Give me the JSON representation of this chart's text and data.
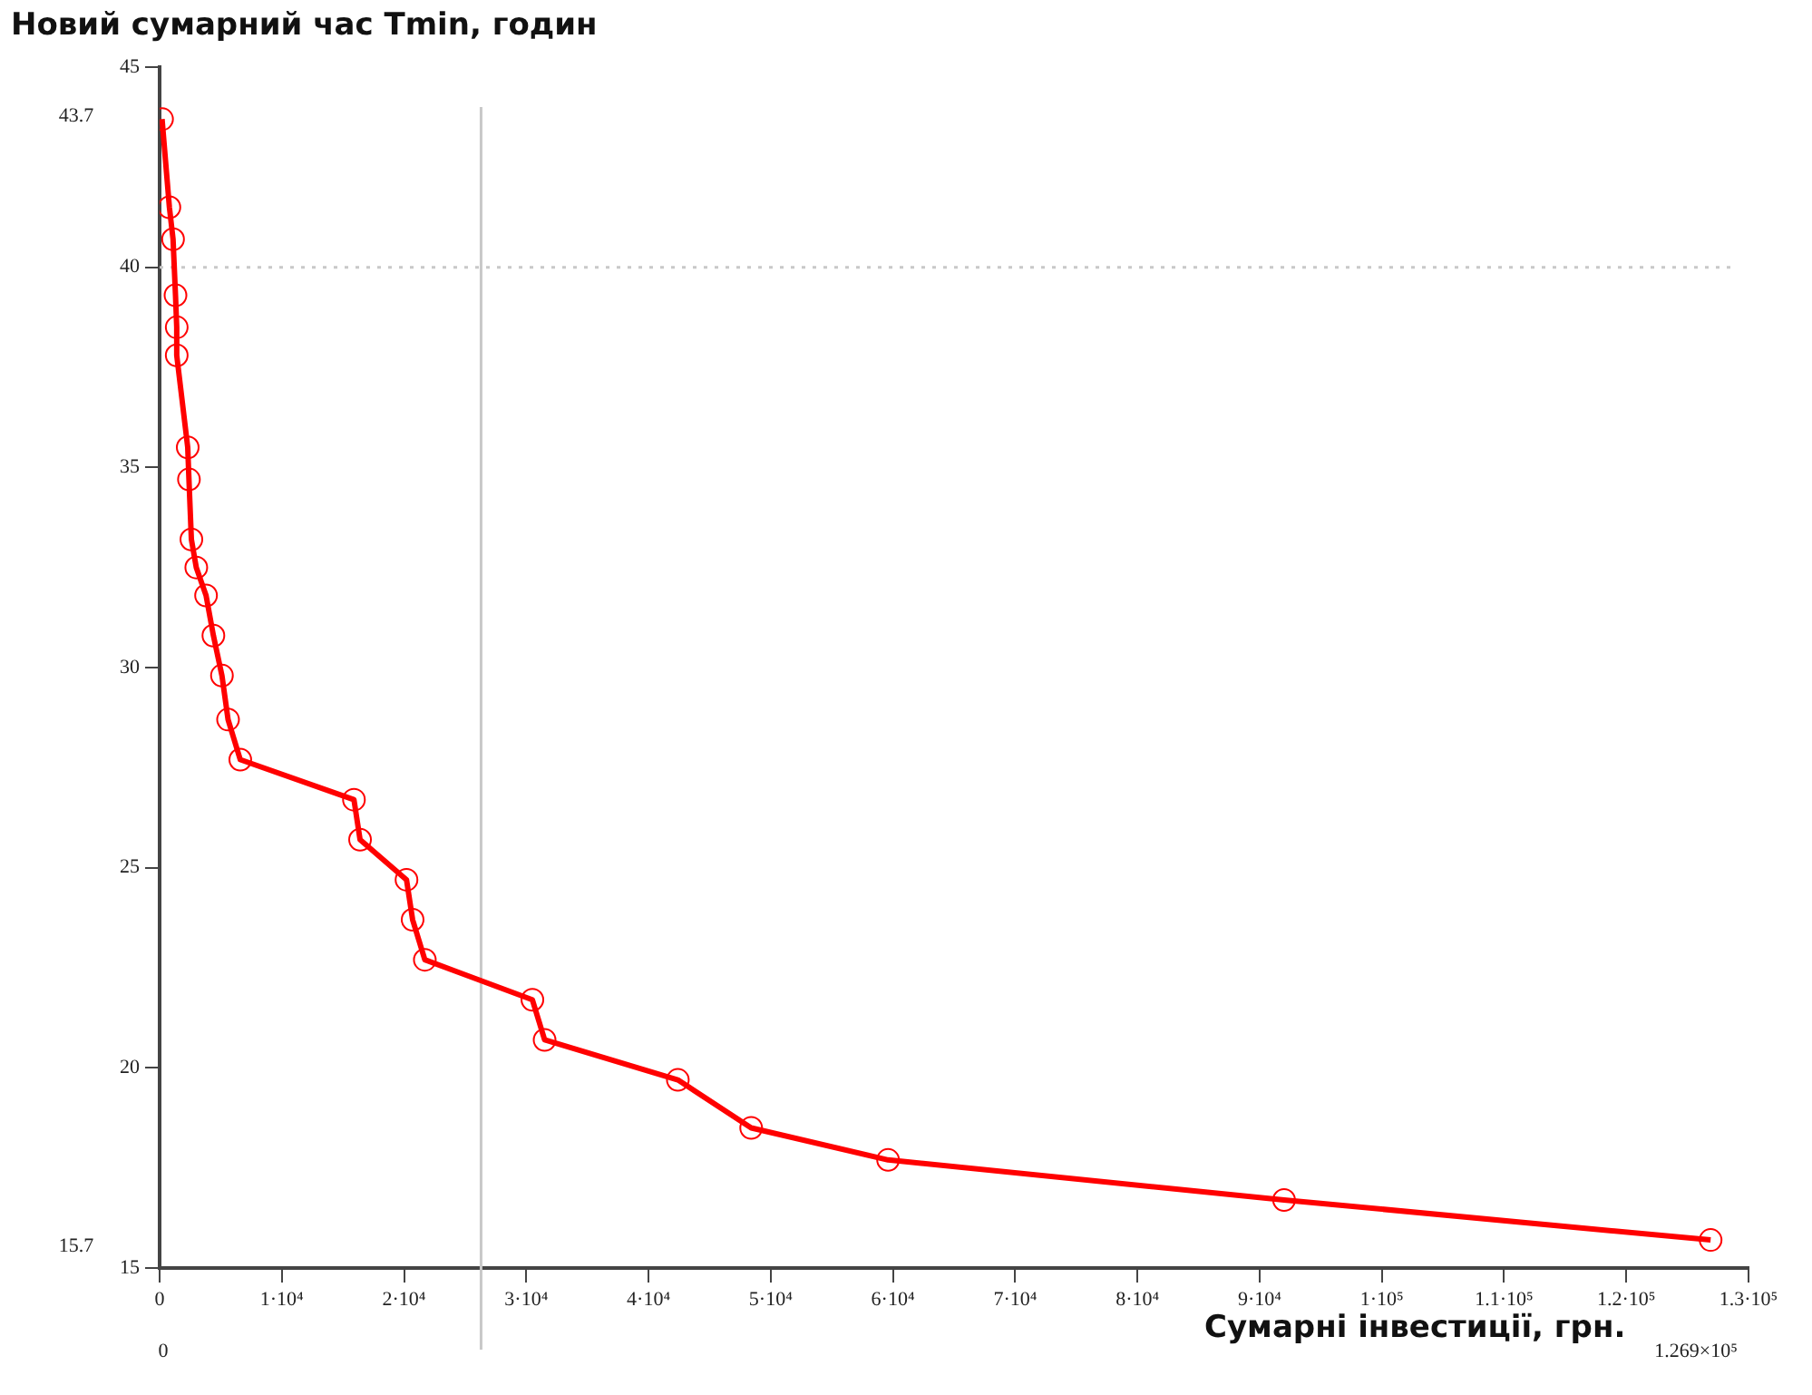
{
  "chart_data": {
    "type": "line",
    "xlabel": "Сумарні інвестиції, грн.",
    "ylabel": "Новий сумарний час Tmin, годин",
    "x": [
      200,
      800,
      1100,
      1300,
      1400,
      1400,
      2300,
      2400,
      2600,
      3000,
      3800,
      4400,
      5100,
      5600,
      6600,
      15900,
      16400,
      20200,
      20700,
      21700,
      30500,
      31500,
      42400,
      48400,
      59600,
      92000,
      126900
    ],
    "series": [
      {
        "color": "#ff0000",
        "values": [
          43.7,
          41.5,
          40.7,
          39.3,
          38.5,
          37.8,
          35.5,
          34.7,
          33.2,
          32.5,
          31.8,
          30.8,
          29.8,
          28.7,
          27.7,
          26.7,
          25.7,
          24.7,
          23.7,
          22.7,
          21.7,
          20.7,
          19.7,
          18.5,
          17.7,
          16.7,
          15.7
        ]
      }
    ],
    "xlim": [
      0,
      130000
    ],
    "xticks": [
      0,
      {
        "value": 10000,
        "label": "1·10⁴"
      },
      {
        "value": 20000,
        "label": "2·10⁴"
      },
      {
        "value": 30000,
        "label": "3·10⁴"
      },
      {
        "value": 40000,
        "label": "4·10⁴"
      },
      {
        "value": 50000,
        "label": "5·10⁴"
      },
      {
        "value": 60000,
        "label": "6·10⁴"
      },
      {
        "value": 70000,
        "label": "7·10⁴"
      },
      {
        "value": 80000,
        "label": "8·10⁴"
      },
      {
        "value": 90000,
        "label": "9·10⁴"
      },
      {
        "value": 100000,
        "label": "1·10⁵"
      },
      {
        "value": 110000,
        "label": "1.1·10⁵"
      },
      {
        "value": 120000,
        "label": "1.2·10⁵"
      },
      {
        "value": 130000,
        "label": "1.3·10⁵"
      }
    ],
    "ylim": [
      15,
      45
    ],
    "yticks": [
      15,
      20,
      25,
      30,
      35,
      40,
      45
    ],
    "ref_lines": [
      {
        "axis": "y",
        "value": 40,
        "color": "#c8c8c8",
        "line_style": "dotted"
      },
      {
        "axis": "x",
        "value": 26300,
        "color": "#c8c8c8",
        "line_style": "solid"
      }
    ],
    "annotations": [
      "43.7",
      "15.7",
      "0",
      "1.269×10⁵"
    ],
    "marker": "circle",
    "line_style": "solid",
    "grid": false,
    "legend": false
  }
}
